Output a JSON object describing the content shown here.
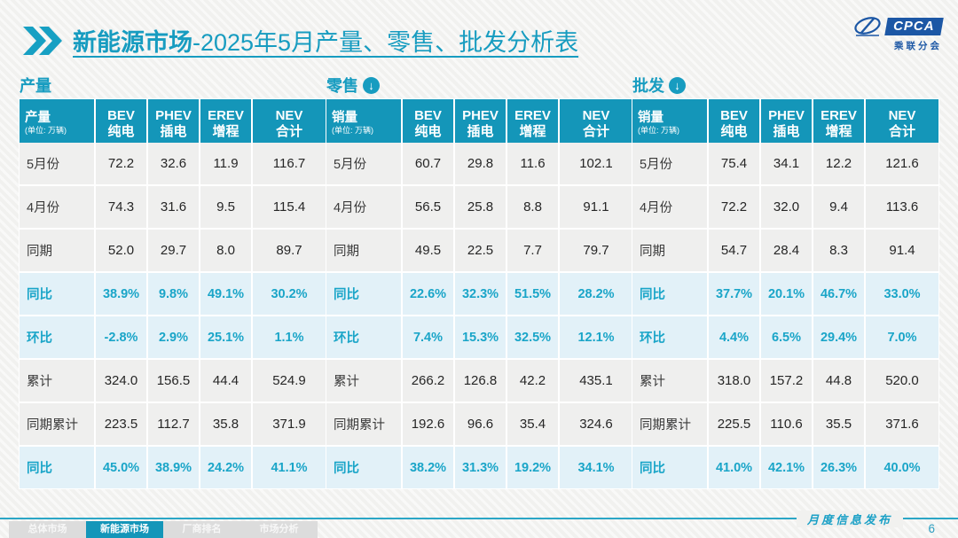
{
  "title": {
    "main": "新能源市场",
    "rest": "-2025年5月产量、零售、批发分析表"
  },
  "logo": {
    "cpca": "CPCA",
    "sub": "乘联分会"
  },
  "watermark": "乘联分会",
  "colors": {
    "teal": "#1496b9",
    "teal_bright": "#1aa5c8",
    "pct_row_bg": "#e2f1f8",
    "row_bg": "#efefee",
    "logo_blue": "#1c57a5"
  },
  "tables": [
    {
      "section_label": "产量",
      "has_arrow": false,
      "corner_label": "产量",
      "unit": "(单位: 万辆)",
      "columns": [
        {
          "top": "BEV",
          "bottom": "纯电"
        },
        {
          "top": "PHEV",
          "bottom": "插电"
        },
        {
          "top": "EREV",
          "bottom": "增程"
        },
        {
          "top": "NEV",
          "bottom": "合计"
        }
      ],
      "rows": [
        {
          "label": "5月份",
          "type": "data",
          "values": [
            "72.2",
            "32.6",
            "11.9",
            "116.7"
          ]
        },
        {
          "label": "4月份",
          "type": "data",
          "values": [
            "74.3",
            "31.6",
            "9.5",
            "115.4"
          ]
        },
        {
          "label": "同期",
          "type": "data",
          "values": [
            "52.0",
            "29.7",
            "8.0",
            "89.7"
          ]
        },
        {
          "label": "同比",
          "type": "pct",
          "values": [
            "38.9%",
            "9.8%",
            "49.1%",
            "30.2%"
          ]
        },
        {
          "label": "环比",
          "type": "pct",
          "values": [
            "-2.8%",
            "2.9%",
            "25.1%",
            "1.1%"
          ]
        },
        {
          "label": "累计",
          "type": "data",
          "values": [
            "324.0",
            "156.5",
            "44.4",
            "524.9"
          ]
        },
        {
          "label": "同期累计",
          "type": "data",
          "values": [
            "223.5",
            "112.7",
            "35.8",
            "371.9"
          ]
        },
        {
          "label": "同比",
          "type": "pct",
          "values": [
            "45.0%",
            "38.9%",
            "24.2%",
            "41.1%"
          ]
        }
      ]
    },
    {
      "section_label": "零售",
      "has_arrow": true,
      "corner_label": "销量",
      "unit": "(单位: 万辆)",
      "columns": [
        {
          "top": "BEV",
          "bottom": "纯电"
        },
        {
          "top": "PHEV",
          "bottom": "插电"
        },
        {
          "top": "EREV",
          "bottom": "增程"
        },
        {
          "top": "NEV",
          "bottom": "合计"
        }
      ],
      "rows": [
        {
          "label": "5月份",
          "type": "data",
          "values": [
            "60.7",
            "29.8",
            "11.6",
            "102.1"
          ]
        },
        {
          "label": "4月份",
          "type": "data",
          "values": [
            "56.5",
            "25.8",
            "8.8",
            "91.1"
          ]
        },
        {
          "label": "同期",
          "type": "data",
          "values": [
            "49.5",
            "22.5",
            "7.7",
            "79.7"
          ]
        },
        {
          "label": "同比",
          "type": "pct",
          "values": [
            "22.6%",
            "32.3%",
            "51.5%",
            "28.2%"
          ]
        },
        {
          "label": "环比",
          "type": "pct",
          "values": [
            "7.4%",
            "15.3%",
            "32.5%",
            "12.1%"
          ]
        },
        {
          "label": "累计",
          "type": "data",
          "values": [
            "266.2",
            "126.8",
            "42.2",
            "435.1"
          ]
        },
        {
          "label": "同期累计",
          "type": "data",
          "values": [
            "192.6",
            "96.6",
            "35.4",
            "324.6"
          ]
        },
        {
          "label": "同比",
          "type": "pct",
          "values": [
            "38.2%",
            "31.3%",
            "19.2%",
            "34.1%"
          ]
        }
      ]
    },
    {
      "section_label": "批发",
      "has_arrow": true,
      "corner_label": "销量",
      "unit": "(单位: 万辆)",
      "columns": [
        {
          "top": "BEV",
          "bottom": "纯电"
        },
        {
          "top": "PHEV",
          "bottom": "插电"
        },
        {
          "top": "EREV",
          "bottom": "增程"
        },
        {
          "top": "NEV",
          "bottom": "合计"
        }
      ],
      "rows": [
        {
          "label": "5月份",
          "type": "data",
          "values": [
            "75.4",
            "34.1",
            "12.2",
            "121.6"
          ]
        },
        {
          "label": "4月份",
          "type": "data",
          "values": [
            "72.2",
            "32.0",
            "9.4",
            "113.6"
          ]
        },
        {
          "label": "同期",
          "type": "data",
          "values": [
            "54.7",
            "28.4",
            "8.3",
            "91.4"
          ]
        },
        {
          "label": "同比",
          "type": "pct",
          "values": [
            "37.7%",
            "20.1%",
            "46.7%",
            "33.0%"
          ]
        },
        {
          "label": "环比",
          "type": "pct",
          "values": [
            "4.4%",
            "6.5%",
            "29.4%",
            "7.0%"
          ]
        },
        {
          "label": "累计",
          "type": "data",
          "values": [
            "318.0",
            "157.2",
            "44.8",
            "520.0"
          ]
        },
        {
          "label": "同期累计",
          "type": "data",
          "values": [
            "225.5",
            "110.6",
            "35.5",
            "371.6"
          ]
        },
        {
          "label": "同比",
          "type": "pct",
          "values": [
            "41.0%",
            "42.1%",
            "26.3%",
            "40.0%"
          ]
        }
      ]
    }
  ],
  "footer": {
    "tabs": [
      {
        "label": "总体市场",
        "active": false
      },
      {
        "label": "新能源市场",
        "active": true
      },
      {
        "label": "厂商排名",
        "active": false
      },
      {
        "label": "市场分析",
        "active": false
      }
    ],
    "publication_label": "月度信息发布",
    "page_number": "6"
  }
}
